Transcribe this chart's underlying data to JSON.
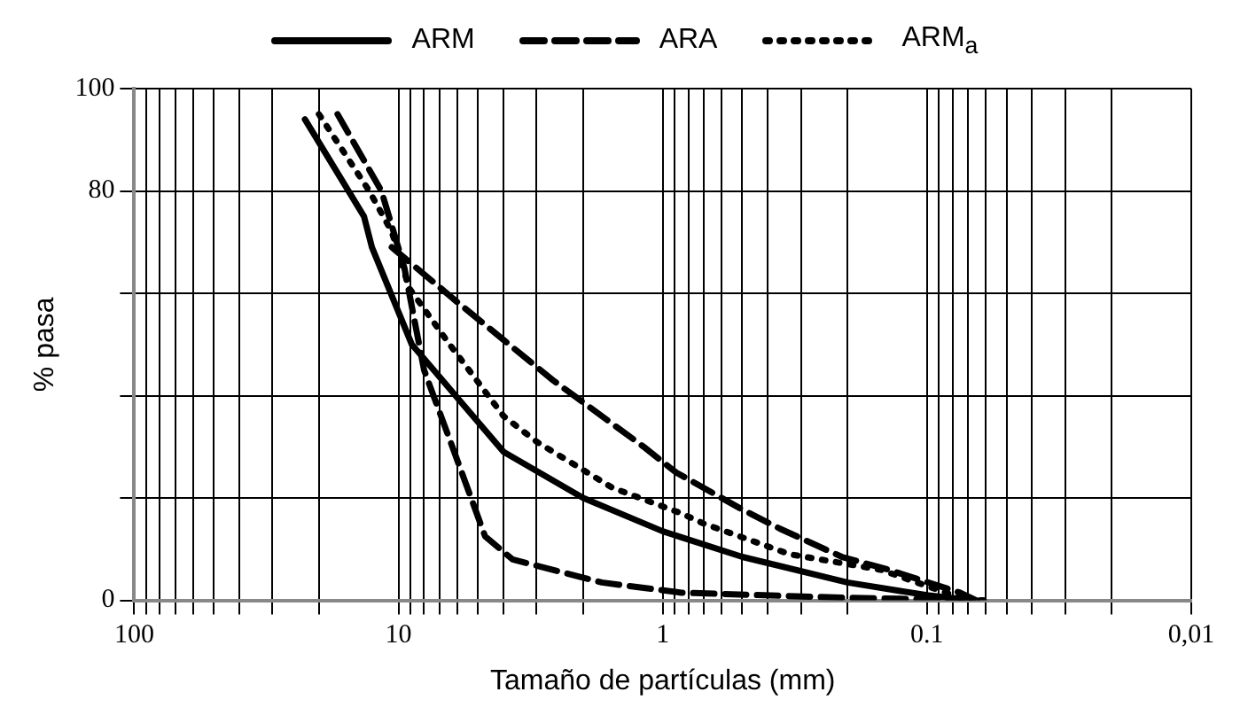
{
  "chart_data": {
    "type": "line",
    "xlabel": "Tamaño de partículas (mm)",
    "ylabel": "% pasa",
    "log": "x",
    "grid": true,
    "legend": "top",
    "marker": "none",
    "xlim": [
      100,
      0.01
    ],
    "xticks": [
      100,
      {
        "value": 90,
        "label": null
      },
      {
        "value": 80,
        "label": null
      },
      {
        "value": 70,
        "label": null
      },
      {
        "value": 60,
        "label": null
      },
      {
        "value": 50,
        "label": null
      },
      {
        "value": 40,
        "label": null
      },
      {
        "value": 30,
        "label": null
      },
      {
        "value": 20,
        "label": null
      },
      10,
      {
        "value": 9,
        "label": null
      },
      {
        "value": 8,
        "label": null
      },
      {
        "value": 7,
        "label": null
      },
      {
        "value": 6,
        "label": null
      },
      {
        "value": 5,
        "label": null
      },
      {
        "value": 4,
        "label": null
      },
      {
        "value": 3,
        "label": null
      },
      {
        "value": 2,
        "label": null
      },
      1,
      {
        "value": 0.9,
        "label": null
      },
      {
        "value": 0.8,
        "label": null
      },
      {
        "value": 0.7,
        "label": null
      },
      {
        "value": 0.6,
        "label": null
      },
      {
        "value": 0.5,
        "label": null
      },
      {
        "value": 0.4,
        "label": null
      },
      {
        "value": 0.3,
        "label": null
      },
      {
        "value": 0.2,
        "label": null
      },
      0.1,
      {
        "value": 0.09,
        "label": null
      },
      {
        "value": 0.08,
        "label": null
      },
      {
        "value": 0.07,
        "label": null
      },
      {
        "value": 0.06,
        "label": null
      },
      {
        "value": 0.05,
        "label": null
      },
      {
        "value": 0.04,
        "label": null
      },
      {
        "value": 0.03,
        "label": null
      },
      {
        "value": 0.02,
        "label": null
      },
      {
        "value": 0.01,
        "label": "0,01"
      }
    ],
    "ylim": [
      0,
      100
    ],
    "yticks": [
      0,
      {
        "value": 20,
        "label": null
      },
      {
        "value": 40,
        "label": null
      },
      {
        "value": 60,
        "label": null
      },
      80,
      100
    ],
    "series": [
      {
        "name": "ARM",
        "color": "#000000",
        "line_style": "solid",
        "x": [
          22.6,
          13.5,
          12.6,
          8.9,
          4,
          2,
          1,
          0.5,
          0.2,
          0.1,
          0.067
        ],
        "values": [
          94,
          75,
          69,
          50,
          29,
          20,
          13.5,
          8.5,
          3.5,
          1,
          0
        ]
      },
      {
        "name": "ARA",
        "color": "#000000",
        "line_style": "dashed",
        "x": [
          17,
          11.6,
          9.5,
          8,
          6.1,
          4.7,
          3.7,
          1.7,
          0.85,
          0.2,
          0.061
        ],
        "values": [
          95,
          80,
          65,
          45,
          28.5,
          12.5,
          8,
          3.5,
          1.5,
          0.5,
          0
        ]
      },
      {
        "name": "ARM$_{a}$",
        "color": "#000000",
        "line_style": "dotted",
        "x": [
          20,
          12.9,
          10.6,
          9.1,
          6.4,
          4,
          3,
          1.55,
          0.85,
          0.7,
          0.33,
          0.15,
          0.07
        ],
        "values": [
          95,
          80,
          72,
          61,
          50,
          36,
          31,
          22,
          17,
          15,
          9,
          6,
          0
        ]
      },
      {
        "color": "#000000",
        "line_style": "dashed",
        "x": [
          10.6,
          5.9,
          2.6,
          1.18,
          0.89,
          0.51,
          0.36,
          0.21,
          0.14,
          0.075,
          0.065
        ],
        "values": [
          69,
          58,
          43,
          30,
          25,
          18,
          14,
          8.5,
          6,
          1.5,
          0
        ]
      }
    ]
  }
}
